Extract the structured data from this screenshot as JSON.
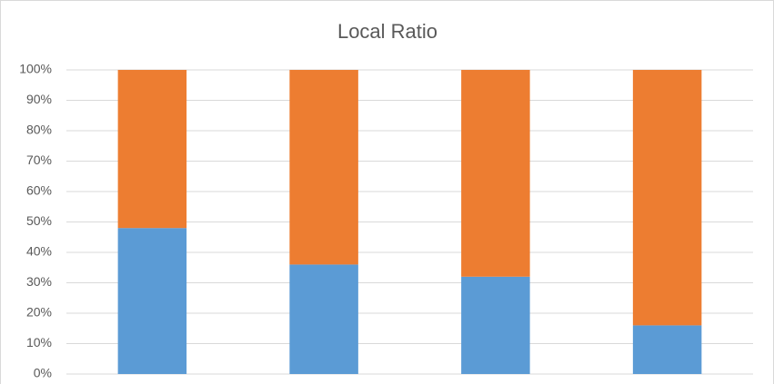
{
  "chart_data": {
    "type": "bar",
    "stacked": true,
    "title": "Local Ratio",
    "categories": [
      null,
      null,
      null,
      null
    ],
    "series": [
      {
        "color": "#5b9bd5",
        "values": [
          48,
          36,
          32,
          16
        ]
      },
      {
        "color": "#ed7d31",
        "values": [
          52,
          64,
          68,
          84
        ]
      }
    ],
    "ylim": [
      0,
      100
    ],
    "yticks": [
      {
        "value": 0,
        "label": "0%"
      },
      {
        "value": 10,
        "label": "10%"
      },
      {
        "value": 20,
        "label": "20%"
      },
      {
        "value": 30,
        "label": "30%"
      },
      {
        "value": 40,
        "label": "40%"
      },
      {
        "value": 50,
        "label": "50%"
      },
      {
        "value": 60,
        "label": "60%"
      },
      {
        "value": 70,
        "label": "70%"
      },
      {
        "value": 80,
        "label": "80%"
      },
      {
        "value": 90,
        "label": "90%"
      },
      {
        "value": 100,
        "label": "100%"
      }
    ],
    "grid": true
  }
}
